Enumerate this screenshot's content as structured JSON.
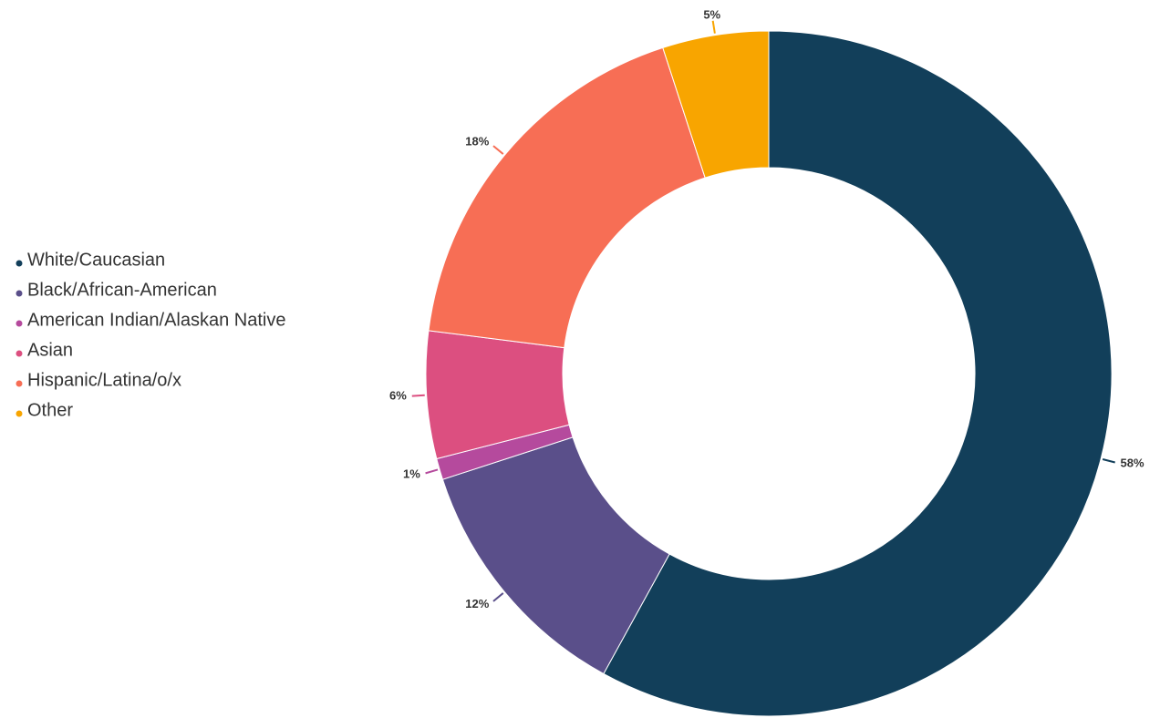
{
  "chart_data": {
    "type": "donut",
    "categories": [
      "White/Caucasian",
      "Black/African-American",
      "American Indian/Alaskan Native",
      "Asian",
      "Hispanic/Latina/o/x",
      "Other"
    ],
    "values": [
      58,
      12,
      1,
      6,
      18,
      5
    ],
    "value_labels": [
      "58%",
      "12%",
      "1%",
      "6%",
      "18%",
      "5%"
    ],
    "colors": [
      "#123f5a",
      "#5a4f8a",
      "#b54a9d",
      "#dc4f80",
      "#f76e55",
      "#f8a500"
    ],
    "legend": "left"
  }
}
